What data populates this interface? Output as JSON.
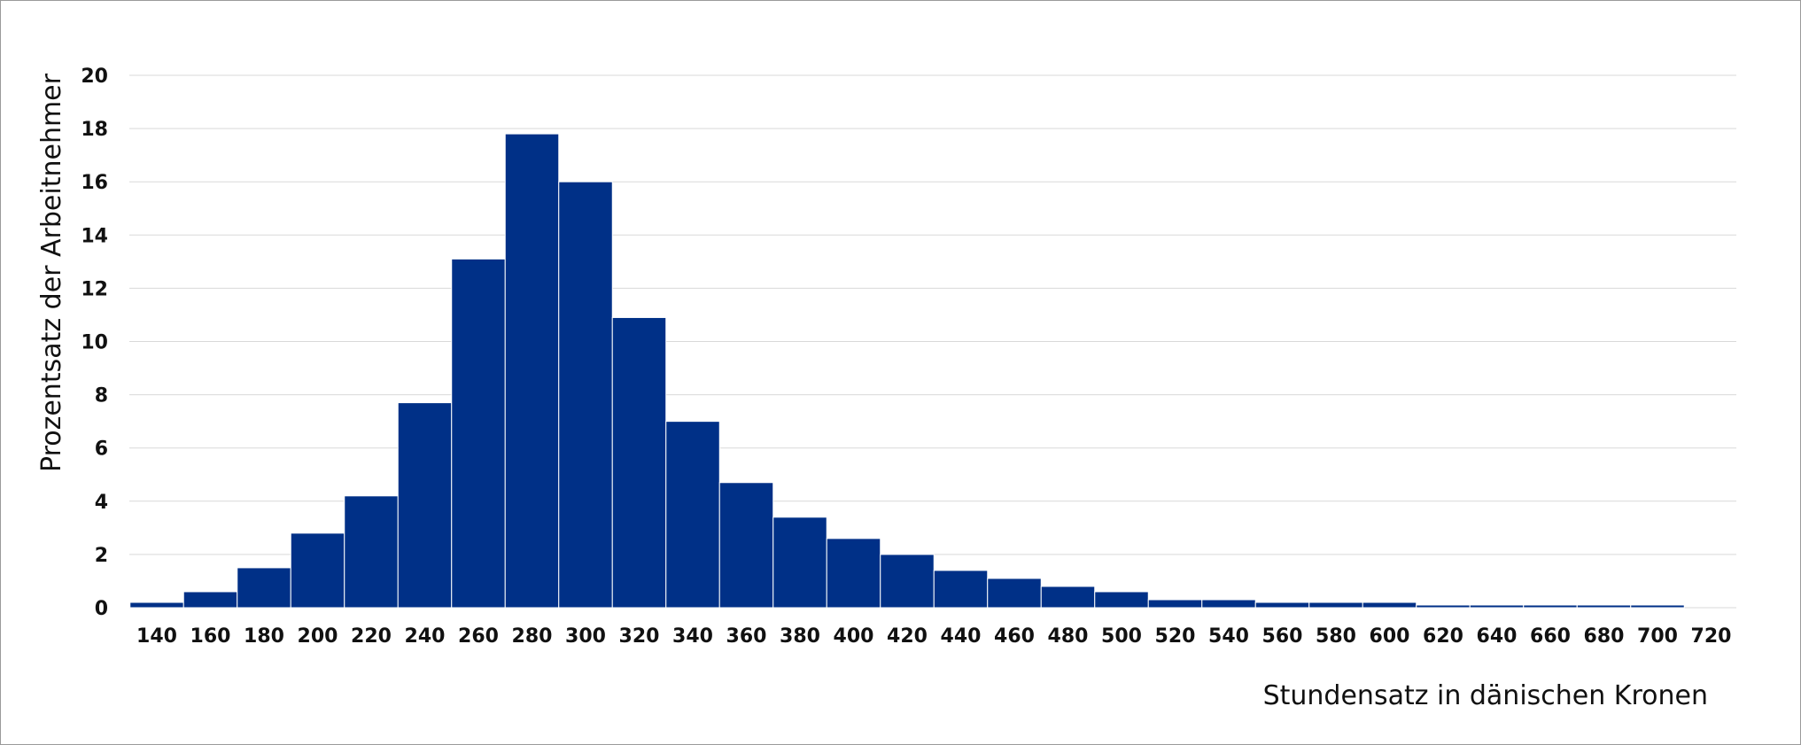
{
  "chart_data": {
    "type": "bar",
    "title": "",
    "xlabel": "Stundensatz in dänischen Kronen",
    "ylabel": "Prozentsatz der Arbeitnehmer",
    "x_tick_labels": [
      "140",
      "160",
      "180",
      "200",
      "220",
      "240",
      "260",
      "280",
      "300",
      "320",
      "340",
      "360",
      "380",
      "400",
      "420",
      "440",
      "460",
      "480",
      "500",
      "520",
      "540",
      "560",
      "580",
      "600",
      "620",
      "640",
      "660",
      "680",
      "700",
      "720"
    ],
    "y_tick_labels": [
      "0",
      "2",
      "4",
      "6",
      "8",
      "10",
      "12",
      "14",
      "16",
      "18",
      "20"
    ],
    "ylim": [
      0,
      20
    ],
    "grid": true,
    "legend": "none",
    "bar_color": "#003087",
    "gridline_color": "#d9d9d9",
    "values": [
      0.2,
      0.6,
      1.5,
      2.8,
      4.2,
      7.7,
      13.1,
      17.8,
      16.0,
      10.9,
      7.0,
      4.7,
      3.4,
      2.6,
      2.0,
      1.4,
      1.1,
      0.8,
      0.6,
      0.3,
      0.3,
      0.2,
      0.2,
      0.2,
      0.1,
      0.1,
      0.1,
      0.1,
      0.1
    ]
  }
}
